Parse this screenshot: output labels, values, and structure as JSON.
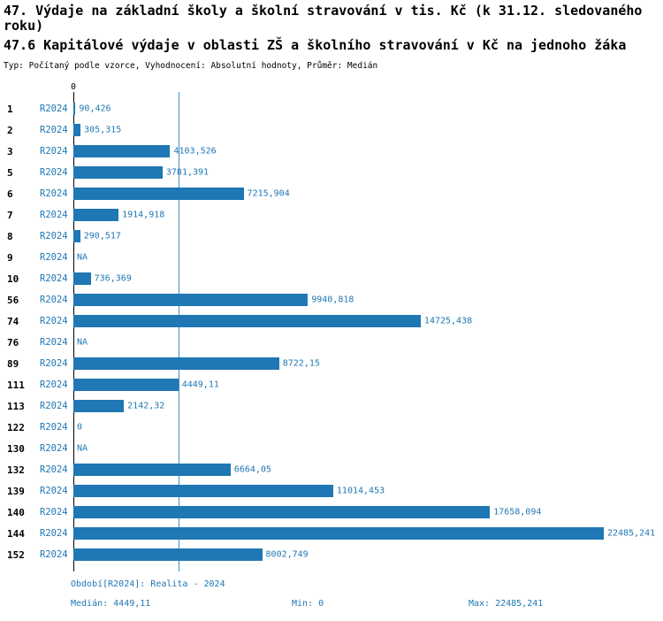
{
  "title_line1": "47. Výdaje na základní školy a školní stravování v tis. Kč (k 31.12. sledovaného roku)",
  "title_line2": "47.6 Kapitálové výdaje v oblasti ZŠ a školního stravování v Kč na jednoho žáka",
  "subtitle": "Typ: Počítaný podle vzorce, Vyhodnocení: Absolutní hodnoty, Průměr: Medián",
  "chart_data": {
    "type": "bar",
    "orientation": "horizontal",
    "title": "47.6 Kapitálové výdaje v oblasti ZŠ a školního stravování v Kč na jednoho žáka",
    "axis_zero_label": "0",
    "xlim": [
      0,
      22485.241
    ],
    "median_value": 4449.11,
    "series_name": "R2024",
    "bar_color": "#1f77b4",
    "label_color": "#1f77b4",
    "median_line_color": "#4090c5",
    "grid": false,
    "rows": [
      {
        "id": "1",
        "period": "R2024",
        "value": 90.426,
        "value_label": "90,426"
      },
      {
        "id": "2",
        "period": "R2024",
        "value": 305.315,
        "value_label": "305,315"
      },
      {
        "id": "3",
        "period": "R2024",
        "value": 4103.526,
        "value_label": "4103,526"
      },
      {
        "id": "5",
        "period": "R2024",
        "value": 3781.391,
        "value_label": "3781,391"
      },
      {
        "id": "6",
        "period": "R2024",
        "value": 7215.904,
        "value_label": "7215,904"
      },
      {
        "id": "7",
        "period": "R2024",
        "value": 1914.918,
        "value_label": "1914,918"
      },
      {
        "id": "8",
        "period": "R2024",
        "value": 290.517,
        "value_label": "290,517"
      },
      {
        "id": "9",
        "period": "R2024",
        "value": null,
        "value_label": "NA"
      },
      {
        "id": "10",
        "period": "R2024",
        "value": 736.369,
        "value_label": "736,369"
      },
      {
        "id": "56",
        "period": "R2024",
        "value": 9940.818,
        "value_label": "9940,818"
      },
      {
        "id": "74",
        "period": "R2024",
        "value": 14725.438,
        "value_label": "14725,438"
      },
      {
        "id": "76",
        "period": "R2024",
        "value": null,
        "value_label": "NA"
      },
      {
        "id": "89",
        "period": "R2024",
        "value": 8722.15,
        "value_label": "8722,15"
      },
      {
        "id": "111",
        "period": "R2024",
        "value": 4449.11,
        "value_label": "4449,11"
      },
      {
        "id": "113",
        "period": "R2024",
        "value": 2142.32,
        "value_label": "2142,32"
      },
      {
        "id": "122",
        "period": "R2024",
        "value": 0,
        "value_label": "0"
      },
      {
        "id": "130",
        "period": "R2024",
        "value": null,
        "value_label": "NA"
      },
      {
        "id": "132",
        "period": "R2024",
        "value": 6664.05,
        "value_label": "6664,05"
      },
      {
        "id": "139",
        "period": "R2024",
        "value": 11014.453,
        "value_label": "11014,453"
      },
      {
        "id": "140",
        "period": "R2024",
        "value": 17658.094,
        "value_label": "17658,094"
      },
      {
        "id": "144",
        "period": "R2024",
        "value": 22485.241,
        "value_label": "22485,241"
      },
      {
        "id": "152",
        "period": "R2024",
        "value": 8002.749,
        "value_label": "8002,749"
      }
    ]
  },
  "footer": {
    "period": "Období[R2024]: Realita - 2024",
    "median": "Medián: 4449,11",
    "min": "Min: 0",
    "max": "Max: 22485,241"
  }
}
